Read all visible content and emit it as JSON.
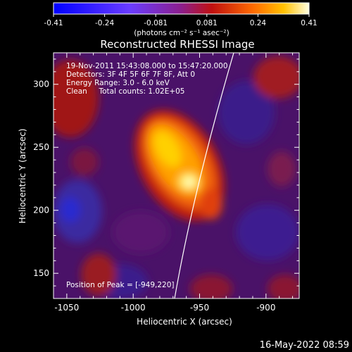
{
  "colorbar": {
    "tick_labels": [
      "-0.41",
      "-0.24",
      "-0.081",
      "0.081",
      "0.24",
      "0.41"
    ],
    "units_label": "(photons cm⁻² s⁻¹ asec⁻²)",
    "range": [
      -0.41,
      0.41
    ]
  },
  "title": "Reconstructed RHESSI Image",
  "info_lines": [
    "19-Nov-2011 15:43:08.000 to 15:47:20.000",
    "Detectors: 3F 4F 5F 6F 7F 8F, Att 0",
    "Energy Range: 3.0 - 6.0 keV",
    "Clean     Total counts: 1.02E+05"
  ],
  "peak_label": "Position of Peak = [-949,220]",
  "x_axis": {
    "label": "Heliocentric X (arcsec)",
    "tick_labels": [
      "-1050",
      "-1000",
      "-950",
      "-900"
    ],
    "ticks": [
      -1050,
      -1000,
      -950,
      -900
    ],
    "range": [
      -1060,
      -875
    ]
  },
  "y_axis": {
    "label": "Heliocentric Y (arcsec)",
    "tick_labels": [
      "150",
      "200",
      "250",
      "300"
    ],
    "ticks": [
      150,
      200,
      250,
      300
    ],
    "range": [
      130,
      325
    ]
  },
  "timestamp": "16-May-2022 08:59",
  "colors": {
    "limb": "#ffffff",
    "background": "#000000"
  }
}
